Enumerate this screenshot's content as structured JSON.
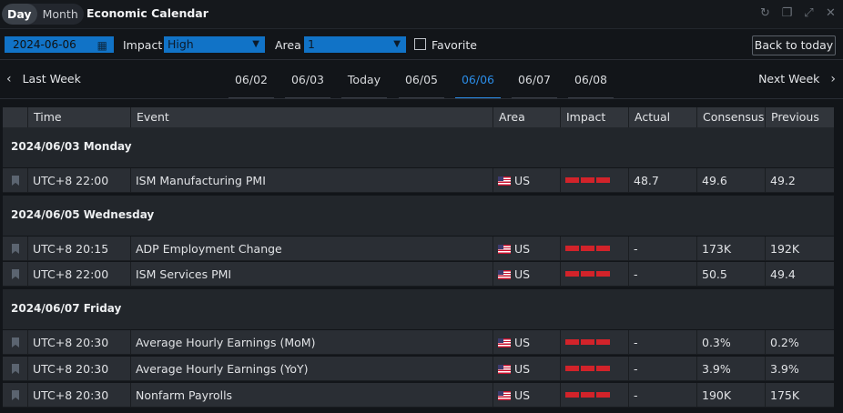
{
  "header": {
    "mode_tabs": [
      {
        "label": "Day",
        "active": true
      },
      {
        "label": "Month",
        "active": false
      }
    ],
    "title": "Economic Calendar",
    "window_icons": [
      "refresh-icon",
      "restore-icon",
      "expand-icon",
      "close-icon"
    ]
  },
  "filters": {
    "date_value": "2024-06-06",
    "impact_label": "Impact",
    "impact_value": "High",
    "area_label": "Area",
    "area_value": "1",
    "favorite_label": "Favorite",
    "favorite_checked": false,
    "back_to_today": "Back to today"
  },
  "week_nav": {
    "prev_label": "Last Week",
    "next_label": "Next Week",
    "days": [
      {
        "label": "06/02",
        "active": false
      },
      {
        "label": "06/03",
        "active": false
      },
      {
        "label": "Today",
        "active": false
      },
      {
        "label": "06/05",
        "active": false
      },
      {
        "label": "06/06",
        "active": true
      },
      {
        "label": "06/07",
        "active": false
      },
      {
        "label": "06/08",
        "active": false
      }
    ]
  },
  "table": {
    "columns": [
      "Time",
      "Event",
      "Area",
      "Impact",
      "Actual",
      "Consensus",
      "Previous"
    ],
    "groups": [
      {
        "date": "2024/06/03 Monday",
        "rows": [
          {
            "time": "UTC+8 22:00",
            "event": "ISM Manufacturing PMI",
            "area": "US",
            "impact": 3,
            "actual": "48.7",
            "consensus": "49.6",
            "previous": "49.2"
          }
        ]
      },
      {
        "date": "2024/06/05 Wednesday",
        "rows": [
          {
            "time": "UTC+8 20:15",
            "event": "ADP Employment Change",
            "area": "US",
            "impact": 3,
            "actual": "-",
            "consensus": "173K",
            "previous": "192K"
          },
          {
            "time": "UTC+8 22:00",
            "event": "ISM Services PMI",
            "area": "US",
            "impact": 3,
            "actual": "-",
            "consensus": "50.5",
            "previous": "49.4"
          }
        ]
      },
      {
        "date": "2024/06/07 Friday",
        "rows": [
          {
            "time": "UTC+8 20:30",
            "event": "Average Hourly Earnings (MoM)",
            "area": "US",
            "impact": 3,
            "actual": "-",
            "consensus": "0.3%",
            "previous": "0.2%"
          },
          {
            "time": "UTC+8 20:30",
            "event": "Average Hourly Earnings (YoY)",
            "area": "US",
            "impact": 3,
            "actual": "-",
            "consensus": "3.9%",
            "previous": "3.9%"
          },
          {
            "time": "UTC+8 20:30",
            "event": "Nonfarm Payrolls",
            "area": "US",
            "impact": 3,
            "actual": "-",
            "consensus": "190K",
            "previous": "175K"
          }
        ]
      }
    ]
  },
  "colors": {
    "accent": "#1173c7",
    "active_tab": "#2b8ce6",
    "impact_high": "#d2232a"
  }
}
